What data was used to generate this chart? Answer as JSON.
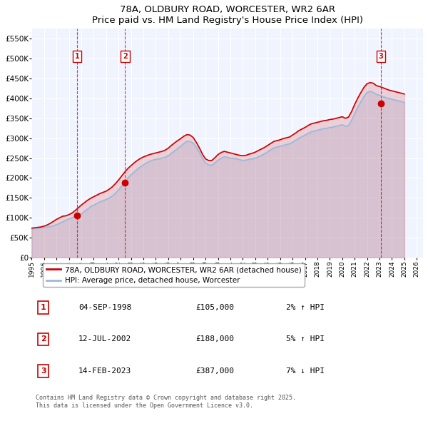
{
  "title1": "78A, OLDBURY ROAD, WORCESTER, WR2 6AR",
  "title2": "Price paid vs. HM Land Registry's House Price Index (HPI)",
  "ylabel_ticks": [
    "£0",
    "£50K",
    "£100K",
    "£150K",
    "£200K",
    "£250K",
    "£300K",
    "£350K",
    "£400K",
    "£450K",
    "£500K",
    "£550K"
  ],
  "ytick_values": [
    0,
    50000,
    100000,
    150000,
    200000,
    250000,
    300000,
    350000,
    400000,
    450000,
    500000,
    550000
  ],
  "ylim": [
    0,
    575000
  ],
  "xlim_min": 1995.0,
  "xlim_max": 2026.5,
  "xtick_years": [
    1995,
    1996,
    1997,
    1998,
    1999,
    2000,
    2001,
    2002,
    2003,
    2004,
    2005,
    2006,
    2007,
    2008,
    2009,
    2010,
    2011,
    2012,
    2013,
    2014,
    2015,
    2016,
    2017,
    2018,
    2019,
    2020,
    2021,
    2022,
    2023,
    2024,
    2025,
    2026
  ],
  "background_color": "#ffffff",
  "plot_bg_color": "#f0f4ff",
  "grid_color": "#ffffff",
  "red_line_color": "#cc0000",
  "blue_line_color": "#99bbdd",
  "transaction_line_color": "#dd0000",
  "transactions": [
    {
      "num": 1,
      "year": 1998.67,
      "price": 105000,
      "date": "04-SEP-1998",
      "pct": "2%",
      "dir": "↑"
    },
    {
      "num": 2,
      "year": 2002.53,
      "price": 188000,
      "date": "12-JUL-2002",
      "pct": "5%",
      "dir": "↑"
    },
    {
      "num": 3,
      "year": 2023.12,
      "price": 387000,
      "date": "14-FEB-2023",
      "pct": "7%",
      "dir": "↓"
    }
  ],
  "legend_label_red": "78A, OLDBURY ROAD, WORCESTER, WR2 6AR (detached house)",
  "legend_label_blue": "HPI: Average price, detached house, Worcester",
  "footer": "Contains HM Land Registry data © Crown copyright and database right 2025.\nThis data is licensed under the Open Government Licence v3.0.",
  "hpi_data": {
    "years": [
      1995.0,
      1995.25,
      1995.5,
      1995.75,
      1996.0,
      1996.25,
      1996.5,
      1996.75,
      1997.0,
      1997.25,
      1997.5,
      1997.75,
      1998.0,
      1998.25,
      1998.5,
      1998.75,
      1999.0,
      1999.25,
      1999.5,
      1999.75,
      2000.0,
      2000.25,
      2000.5,
      2000.75,
      2001.0,
      2001.25,
      2001.5,
      2001.75,
      2002.0,
      2002.25,
      2002.5,
      2002.75,
      2003.0,
      2003.25,
      2003.5,
      2003.75,
      2004.0,
      2004.25,
      2004.5,
      2004.75,
      2005.0,
      2005.25,
      2005.5,
      2005.75,
      2006.0,
      2006.25,
      2006.5,
      2006.75,
      2007.0,
      2007.25,
      2007.5,
      2007.75,
      2008.0,
      2008.25,
      2008.5,
      2008.75,
      2009.0,
      2009.25,
      2009.5,
      2009.75,
      2010.0,
      2010.25,
      2010.5,
      2010.75,
      2011.0,
      2011.25,
      2011.5,
      2011.75,
      2012.0,
      2012.25,
      2012.5,
      2012.75,
      2013.0,
      2013.25,
      2013.5,
      2013.75,
      2014.0,
      2014.25,
      2014.5,
      2014.75,
      2015.0,
      2015.25,
      2015.5,
      2015.75,
      2016.0,
      2016.25,
      2016.5,
      2016.75,
      2017.0,
      2017.25,
      2017.5,
      2017.75,
      2018.0,
      2018.25,
      2018.5,
      2018.75,
      2019.0,
      2019.25,
      2019.5,
      2019.75,
      2020.0,
      2020.25,
      2020.5,
      2020.75,
      2021.0,
      2021.25,
      2021.5,
      2021.75,
      2022.0,
      2022.25,
      2022.5,
      2022.75,
      2023.0,
      2023.25,
      2023.5,
      2023.75,
      2024.0,
      2024.25,
      2024.5,
      2024.75,
      2025.0
    ],
    "values": [
      72000,
      73000,
      74000,
      74500,
      76000,
      77000,
      78000,
      80000,
      83000,
      86000,
      90000,
      94000,
      97000,
      100000,
      103000,
      105000,
      110000,
      116000,
      122000,
      128000,
      132000,
      136000,
      140000,
      143000,
      146000,
      150000,
      155000,
      162000,
      170000,
      180000,
      190000,
      200000,
      208000,
      215000,
      222000,
      228000,
      233000,
      238000,
      242000,
      245000,
      247000,
      248000,
      250000,
      252000,
      256000,
      262000,
      268000,
      274000,
      280000,
      287000,
      292000,
      292000,
      288000,
      278000,
      265000,
      250000,
      238000,
      233000,
      232000,
      238000,
      245000,
      250000,
      253000,
      252000,
      250000,
      249000,
      248000,
      246000,
      244000,
      245000,
      247000,
      248000,
      250000,
      253000,
      257000,
      261000,
      266000,
      271000,
      276000,
      278000,
      280000,
      282000,
      284000,
      286000,
      290000,
      295000,
      300000,
      304000,
      308000,
      312000,
      316000,
      318000,
      320000,
      322000,
      324000,
      325000,
      327000,
      328000,
      330000,
      332000,
      334000,
      330000,
      332000,
      345000,
      362000,
      378000,
      392000,
      405000,
      415000,
      418000,
      415000,
      410000,
      408000,
      405000,
      402000,
      400000,
      398000,
      396000,
      394000,
      392000,
      390000
    ]
  },
  "red_line_data": {
    "years": [
      1995.0,
      1995.25,
      1995.5,
      1995.75,
      1996.0,
      1996.25,
      1996.5,
      1996.75,
      1997.0,
      1997.25,
      1997.5,
      1997.75,
      1998.0,
      1998.25,
      1998.5,
      1998.75,
      1999.0,
      1999.25,
      1999.5,
      1999.75,
      2000.0,
      2000.25,
      2000.5,
      2000.75,
      2001.0,
      2001.25,
      2001.5,
      2001.75,
      2002.0,
      2002.25,
      2002.5,
      2002.75,
      2003.0,
      2003.25,
      2003.5,
      2003.75,
      2004.0,
      2004.25,
      2004.5,
      2004.75,
      2005.0,
      2005.25,
      2005.5,
      2005.75,
      2006.0,
      2006.25,
      2006.5,
      2006.75,
      2007.0,
      2007.25,
      2007.5,
      2007.75,
      2008.0,
      2008.25,
      2008.5,
      2008.75,
      2009.0,
      2009.25,
      2009.5,
      2009.75,
      2010.0,
      2010.25,
      2010.5,
      2010.75,
      2011.0,
      2011.25,
      2011.5,
      2011.75,
      2012.0,
      2012.25,
      2012.5,
      2012.75,
      2013.0,
      2013.25,
      2013.5,
      2013.75,
      2014.0,
      2014.25,
      2014.5,
      2014.75,
      2015.0,
      2015.25,
      2015.5,
      2015.75,
      2016.0,
      2016.25,
      2016.5,
      2016.75,
      2017.0,
      2017.25,
      2017.5,
      2017.75,
      2018.0,
      2018.25,
      2018.5,
      2018.75,
      2019.0,
      2019.25,
      2019.5,
      2019.75,
      2020.0,
      2020.25,
      2020.5,
      2020.75,
      2021.0,
      2021.25,
      2021.5,
      2021.75,
      2022.0,
      2022.25,
      2022.5,
      2022.75,
      2023.0,
      2023.25,
      2023.5,
      2023.75,
      2024.0,
      2024.25,
      2024.5,
      2024.75,
      2025.0
    ],
    "values": [
      74000,
      75000,
      76000,
      77000,
      79000,
      82000,
      86000,
      91000,
      96000,
      100000,
      104000,
      105000,
      108000,
      112000,
      118000,
      125000,
      132000,
      138000,
      144000,
      149000,
      153000,
      157000,
      161000,
      164000,
      167000,
      172000,
      178000,
      186000,
      195000,
      205000,
      215000,
      224000,
      231000,
      238000,
      244000,
      249000,
      253000,
      256000,
      259000,
      261000,
      263000,
      265000,
      267000,
      270000,
      275000,
      282000,
      288000,
      294000,
      299000,
      305000,
      309000,
      308000,
      302000,
      290000,
      276000,
      260000,
      248000,
      244000,
      244000,
      251000,
      259000,
      264000,
      267000,
      265000,
      263000,
      261000,
      259000,
      257000,
      256000,
      257000,
      260000,
      262000,
      265000,
      269000,
      273000,
      277000,
      282000,
      287000,
      292000,
      294000,
      296000,
      299000,
      301000,
      303000,
      308000,
      313000,
      319000,
      323000,
      327000,
      332000,
      336000,
      338000,
      340000,
      342000,
      344000,
      345000,
      347000,
      348000,
      350000,
      352000,
      354000,
      350000,
      353000,
      367000,
      385000,
      401000,
      415000,
      428000,
      437000,
      440000,
      438000,
      432000,
      430000,
      427000,
      424000,
      421000,
      419000,
      417000,
      415000,
      413000,
      411000
    ]
  }
}
